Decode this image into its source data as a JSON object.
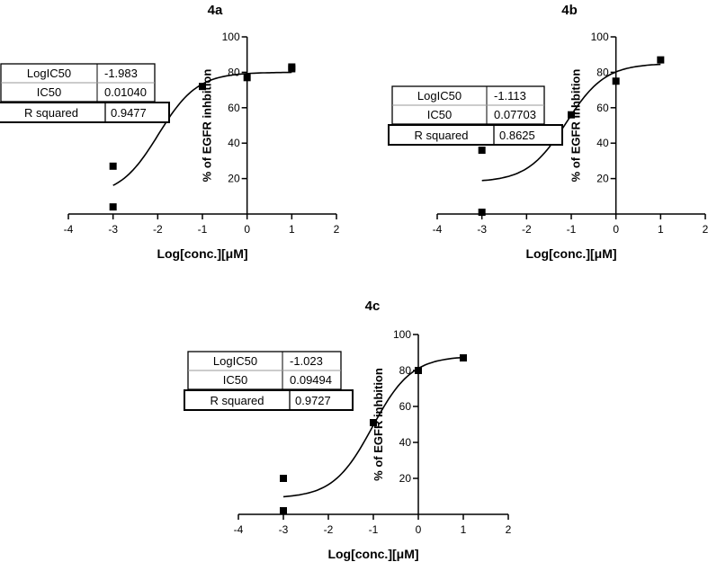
{
  "chart_data": [
    {
      "type": "scatter",
      "title": "4a",
      "xlabel": "Log[conc.][μM]",
      "ylabel": "% of EGFR inhbition",
      "xlim": [
        -4,
        2
      ],
      "ylim": [
        0,
        100
      ],
      "xticks": [
        -4,
        -3,
        -2,
        -1,
        0,
        1,
        2
      ],
      "yticks": [
        20,
        40,
        60,
        80,
        100
      ],
      "grid": false,
      "legend": "none",
      "series": [
        {
          "points": [
            [
              -3,
              27
            ],
            [
              -3,
              4
            ],
            [
              0,
              77
            ],
            [
              1,
              83
            ],
            [
              1,
              82
            ],
            [
              -1,
              72
            ]
          ],
          "fit": {
            "model": "sigmoidal dose-response",
            "bottom": 10,
            "top": 80,
            "logIC50": -1.983
          }
        }
      ],
      "results_table": [
        {
          "label": "LogIC50",
          "value": "-1.983"
        },
        {
          "label": "IC50",
          "value": "0.01040"
        },
        {
          "label": "R squared",
          "value": "0.9477"
        }
      ]
    },
    {
      "type": "scatter",
      "title": "4b",
      "xlabel": "Log[conc.][μM]",
      "ylabel": "% of EGFR inhbition",
      "xlim": [
        -4,
        2
      ],
      "ylim": [
        0,
        100
      ],
      "xticks": [
        -4,
        -3,
        -2,
        -1,
        0,
        1,
        2
      ],
      "yticks": [
        20,
        40,
        60,
        80,
        100
      ],
      "grid": false,
      "legend": "none",
      "series": [
        {
          "points": [
            [
              -3,
              36
            ],
            [
              -3,
              1
            ],
            [
              -1,
              56
            ],
            [
              0,
              75
            ],
            [
              1,
              87
            ]
          ],
          "fit": {
            "model": "sigmoidal dose-response",
            "bottom": 18,
            "top": 85,
            "logIC50": -1.113
          }
        }
      ],
      "results_table": [
        {
          "label": "LogIC50",
          "value": "-1.113"
        },
        {
          "label": "IC50",
          "value": "0.07703"
        },
        {
          "label": "R squared",
          "value": "0.8625"
        }
      ]
    },
    {
      "type": "scatter",
      "title": "4c",
      "xlabel": "Log[conc.][μM]",
      "ylabel": "% of EGFR inhbition",
      "xlim": [
        -4,
        2
      ],
      "ylim": [
        0,
        100
      ],
      "xticks": [
        -4,
        -3,
        -2,
        -1,
        0,
        1,
        2
      ],
      "yticks": [
        20,
        40,
        60,
        80,
        100
      ],
      "grid": false,
      "legend": "none",
      "series": [
        {
          "points": [
            [
              -3,
              20
            ],
            [
              -3,
              2
            ],
            [
              -1,
              51
            ],
            [
              0,
              80
            ],
            [
              1,
              87
            ]
          ],
          "fit": {
            "model": "sigmoidal dose-response",
            "bottom": 9,
            "top": 88,
            "logIC50": -1.023
          }
        }
      ],
      "results_table": [
        {
          "label": "LogIC50",
          "value": "-1.023"
        },
        {
          "label": "IC50",
          "value": "0.09494"
        },
        {
          "label": "R squared",
          "value": "0.9727"
        }
      ]
    }
  ]
}
